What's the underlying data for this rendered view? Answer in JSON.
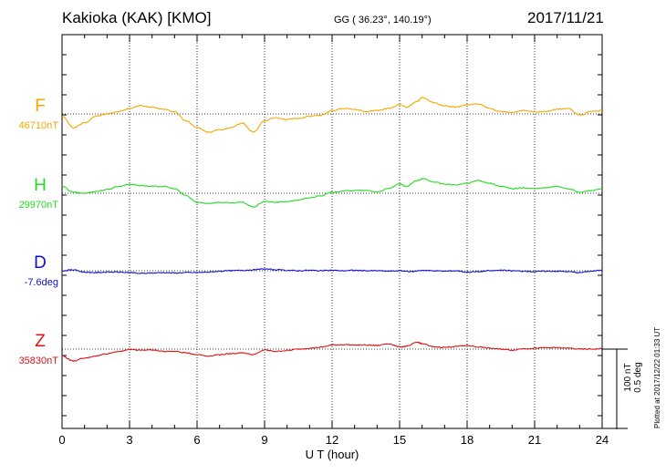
{
  "header": {
    "station": "Kakioka (KAK)  [KMO]",
    "coords": "GG ( 36.23°, 140.19°)",
    "date": "2017/11/21"
  },
  "side": {
    "plotted": "Plotted at 2017/12/22 01:33 UT",
    "scale_nt": "100 nT",
    "scale_deg": "0.5 deg"
  },
  "chart_data": {
    "type": "line",
    "xlabel": "U T (hour)",
    "xlim": [
      0,
      24
    ],
    "xticks": [
      "0",
      "3",
      "6",
      "9",
      "12",
      "15",
      "18",
      "21",
      "24"
    ],
    "grid": true,
    "series": [
      {
        "name": "F",
        "baseline_label": "46710nT",
        "color": "#f5a800",
        "offset_nT": [
          [
            0,
            -5
          ],
          [
            0.5,
            -30
          ],
          [
            1,
            -20
          ],
          [
            1.5,
            -5
          ],
          [
            2,
            0
          ],
          [
            2.5,
            5
          ],
          [
            3,
            12
          ],
          [
            3.5,
            18
          ],
          [
            4,
            15
          ],
          [
            4.5,
            10
          ],
          [
            5,
            5
          ],
          [
            5.5,
            -15
          ],
          [
            6,
            -30
          ],
          [
            6.5,
            -40
          ],
          [
            7,
            -35
          ],
          [
            7.5,
            -30
          ],
          [
            8,
            -20
          ],
          [
            8.5,
            -40
          ],
          [
            9,
            -15
          ],
          [
            9.5,
            -8
          ],
          [
            10,
            -12
          ],
          [
            10.5,
            -10
          ],
          [
            11,
            -5
          ],
          [
            11.5,
            -3
          ],
          [
            12,
            7
          ],
          [
            12.5,
            12
          ],
          [
            13,
            10
          ],
          [
            13.5,
            5
          ],
          [
            14,
            8
          ],
          [
            14.5,
            12
          ],
          [
            15,
            20
          ],
          [
            15.3,
            15
          ],
          [
            15.8,
            28
          ],
          [
            16,
            36
          ],
          [
            16.5,
            25
          ],
          [
            17,
            18
          ],
          [
            17.5,
            15
          ],
          [
            18,
            20
          ],
          [
            18.5,
            22
          ],
          [
            19,
            12
          ],
          [
            19.5,
            5
          ],
          [
            20,
            3
          ],
          [
            20.5,
            8
          ],
          [
            21,
            5
          ],
          [
            21.5,
            6
          ],
          [
            22,
            10
          ],
          [
            22.5,
            12
          ],
          [
            23,
            -3
          ],
          [
            23.5,
            5
          ],
          [
            24,
            7
          ]
        ]
      },
      {
        "name": "H",
        "baseline_label": "29970nT",
        "color": "#22dd22",
        "offset_nT": [
          [
            0,
            15
          ],
          [
            0.5,
            2
          ],
          [
            1,
            0
          ],
          [
            1.5,
            4
          ],
          [
            2,
            8
          ],
          [
            2.5,
            15
          ],
          [
            3,
            20
          ],
          [
            3.5,
            17
          ],
          [
            4,
            15
          ],
          [
            4.5,
            15
          ],
          [
            5,
            10
          ],
          [
            5.5,
            -5
          ],
          [
            6,
            -20
          ],
          [
            6.5,
            -22
          ],
          [
            7,
            -20
          ],
          [
            7.5,
            -21
          ],
          [
            8,
            -20
          ],
          [
            8.5,
            -30
          ],
          [
            9,
            -18
          ],
          [
            9.5,
            -20
          ],
          [
            10,
            -18
          ],
          [
            10.5,
            -15
          ],
          [
            11,
            -10
          ],
          [
            11.5,
            -5
          ],
          [
            12,
            2
          ],
          [
            12.5,
            5
          ],
          [
            13,
            6
          ],
          [
            13.5,
            6
          ],
          [
            14,
            3
          ],
          [
            14.5,
            10
          ],
          [
            15,
            20
          ],
          [
            15.3,
            15
          ],
          [
            15.8,
            28
          ],
          [
            16,
            32
          ],
          [
            16.5,
            25
          ],
          [
            17,
            20
          ],
          [
            17.5,
            18
          ],
          [
            18,
            22
          ],
          [
            18.5,
            28
          ],
          [
            19,
            22
          ],
          [
            19.5,
            15
          ],
          [
            20,
            10
          ],
          [
            20.5,
            12
          ],
          [
            21,
            10
          ],
          [
            21.5,
            12
          ],
          [
            22,
            15
          ],
          [
            22.5,
            10
          ],
          [
            23,
            2
          ],
          [
            23.5,
            6
          ],
          [
            24,
            10
          ]
        ]
      },
      {
        "name": "D",
        "baseline_label": "-7.6deg",
        "color": "#1010d0",
        "offset_nT": [
          [
            0,
            0
          ],
          [
            0.5,
            2
          ],
          [
            1,
            -3
          ],
          [
            1.5,
            -4
          ],
          [
            2,
            -3
          ],
          [
            2.5,
            -3
          ],
          [
            3,
            -4
          ],
          [
            3.5,
            -6
          ],
          [
            4,
            -5
          ],
          [
            4.5,
            -4
          ],
          [
            5,
            -5
          ],
          [
            5.5,
            -4
          ],
          [
            6,
            -4
          ],
          [
            6.5,
            -3
          ],
          [
            7,
            -1
          ],
          [
            7.5,
            0
          ],
          [
            8,
            1
          ],
          [
            8.5,
            2
          ],
          [
            9,
            4
          ],
          [
            9.5,
            2
          ],
          [
            10,
            1
          ],
          [
            10.5,
            0
          ],
          [
            11,
            1
          ],
          [
            11.5,
            0
          ],
          [
            12,
            1
          ],
          [
            12.5,
            0
          ],
          [
            13,
            1
          ],
          [
            13.5,
            0
          ],
          [
            14,
            0
          ],
          [
            14.5,
            -1
          ],
          [
            15,
            0
          ],
          [
            15.5,
            -2
          ],
          [
            16,
            1
          ],
          [
            16.5,
            0
          ],
          [
            17,
            -1
          ],
          [
            17.5,
            0
          ],
          [
            18,
            -3
          ],
          [
            18.5,
            -2
          ],
          [
            19,
            0
          ],
          [
            19.5,
            1
          ],
          [
            20,
            0
          ],
          [
            20.5,
            -1
          ],
          [
            21,
            -2
          ],
          [
            21.5,
            -1
          ],
          [
            22,
            -1
          ],
          [
            22.5,
            -2
          ],
          [
            23,
            -4
          ],
          [
            23.5,
            -1
          ],
          [
            24,
            1
          ]
        ]
      },
      {
        "name": "Z",
        "baseline_label": "35830nT",
        "color": "#e01010",
        "offset_nT": [
          [
            0,
            -15
          ],
          [
            0.5,
            -26
          ],
          [
            1,
            -20
          ],
          [
            1.5,
            -15
          ],
          [
            2,
            -10
          ],
          [
            2.5,
            -5
          ],
          [
            3,
            -1
          ],
          [
            3.5,
            -2
          ],
          [
            4,
            -2
          ],
          [
            4.5,
            -5
          ],
          [
            5,
            -5
          ],
          [
            5.5,
            -8
          ],
          [
            6,
            -12
          ],
          [
            6.5,
            -15
          ],
          [
            7,
            -12
          ],
          [
            7.5,
            -10
          ],
          [
            8,
            -8
          ],
          [
            8.5,
            -12
          ],
          [
            9,
            -2
          ],
          [
            9.5,
            -5
          ],
          [
            10,
            -3
          ],
          [
            10.5,
            0
          ],
          [
            11,
            2
          ],
          [
            11.5,
            4
          ],
          [
            12,
            9
          ],
          [
            12.5,
            10
          ],
          [
            13,
            9
          ],
          [
            13.5,
            9
          ],
          [
            14,
            8
          ],
          [
            14.5,
            12
          ],
          [
            15,
            5
          ],
          [
            15.3,
            6
          ],
          [
            15.8,
            15
          ],
          [
            16,
            12
          ],
          [
            16.5,
            5
          ],
          [
            17,
            4
          ],
          [
            17.5,
            6
          ],
          [
            18,
            8
          ],
          [
            18.5,
            5
          ],
          [
            19,
            2
          ],
          [
            19.5,
            0
          ],
          [
            20,
            -2
          ],
          [
            20.5,
            1
          ],
          [
            21,
            2
          ],
          [
            21.5,
            3
          ],
          [
            22,
            3
          ],
          [
            22.5,
            2
          ],
          [
            23,
            0
          ],
          [
            23.5,
            0
          ],
          [
            24,
            1
          ]
        ]
      }
    ]
  }
}
